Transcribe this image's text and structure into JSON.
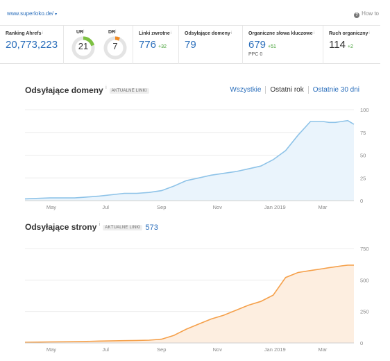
{
  "header": {
    "url": "www.superloko.de/",
    "caret": "▾",
    "help_icon": "?",
    "help_label": "How to"
  },
  "metrics": {
    "ranking": {
      "label": "Ranking Ahrefs",
      "value": "20,773,223"
    },
    "ur": {
      "label": "UR",
      "value": "21",
      "fill": 0.21,
      "color": "#7dc142"
    },
    "dr": {
      "label": "DR",
      "value": "7",
      "fill": 0.07,
      "color": "#f08a24"
    },
    "backlinks": {
      "label": "Linki zwrotne",
      "value": "776",
      "delta": "+32"
    },
    "ref_domains": {
      "label": "Odsyłające domeny",
      "value": "79"
    },
    "keywords": {
      "label": "Organiczne słowa kluczowe",
      "value": "679",
      "delta": "+51",
      "sub": "PPC 0"
    },
    "traffic": {
      "label": "Ruch organiczny",
      "value": "114",
      "delta": "+2"
    }
  },
  "info_mark": "i",
  "chart1_header": {
    "title": "Odsyłające domeny",
    "badge": "AKTUALNE LINKI",
    "tabs": [
      "Wszystkie",
      "Ostatni rok",
      "Ostatnie 30 dni"
    ],
    "active_tab": 1
  },
  "chart2_header": {
    "title": "Odsyłające strony",
    "badge": "AKTUALNE LINKI",
    "count": "573"
  },
  "chart_data": [
    {
      "type": "area",
      "title": "Odsyłające domeny",
      "color": "#8ec3e8",
      "fill": "#eaf4fc",
      "x_ticks": [
        "May",
        "Jul",
        "Sep",
        "Nov",
        "Jan 2019",
        "Mar"
      ],
      "y_ticks": [
        0,
        25,
        50,
        75,
        100
      ],
      "ylim": [
        0,
        100
      ],
      "grid": true,
      "x": [
        0,
        4,
        8,
        10,
        12,
        16,
        18,
        20,
        22,
        24,
        26,
        28,
        30,
        32,
        34,
        36,
        38,
        40,
        42,
        44,
        46,
        48,
        49,
        50,
        51,
        52,
        53
      ],
      "values": [
        2,
        3,
        3,
        4,
        5,
        8,
        8,
        9,
        11,
        16,
        22,
        25,
        28,
        30,
        32,
        35,
        38,
        45,
        55,
        72,
        87,
        87,
        86,
        86,
        87,
        88,
        84
      ]
    },
    {
      "type": "area",
      "title": "Odsyłające strony",
      "color": "#f5a04a",
      "fill": "#fdeee0",
      "x_ticks": [
        "May",
        "Jul",
        "Sep",
        "Nov",
        "Jan 2019",
        "Mar"
      ],
      "y_ticks": [
        0,
        250,
        500,
        750
      ],
      "ylim": [
        0,
        750
      ],
      "grid": true,
      "x": [
        0,
        4,
        8,
        10,
        12,
        16,
        18,
        20,
        22,
        24,
        26,
        28,
        30,
        32,
        34,
        36,
        38,
        40,
        42,
        44,
        46,
        48,
        49,
        50,
        51,
        52,
        53
      ],
      "values": [
        5,
        8,
        10,
        12,
        15,
        18,
        20,
        22,
        30,
        60,
        110,
        150,
        190,
        220,
        260,
        300,
        330,
        380,
        520,
        560,
        575,
        590,
        598,
        605,
        612,
        618,
        618
      ]
    }
  ]
}
